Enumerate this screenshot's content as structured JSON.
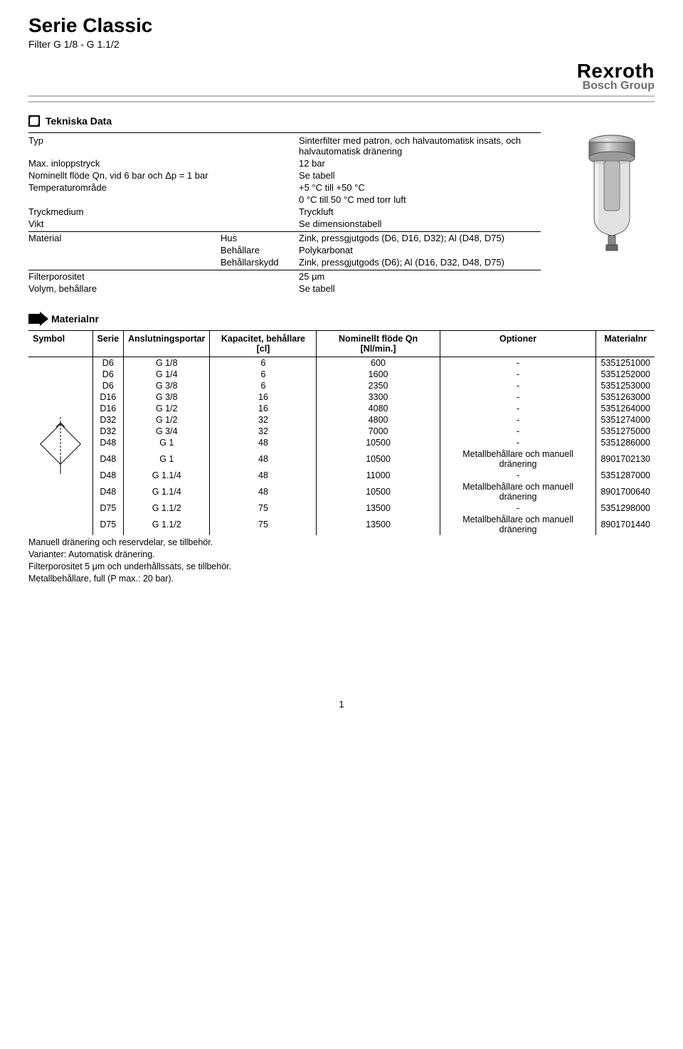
{
  "header": {
    "title": "Serie Classic",
    "subtitle": "Filter G 1/8 - G 1.1/2",
    "logo_main": "Rexroth",
    "logo_sub": "Bosch Group"
  },
  "tekniska": {
    "heading": "Tekniska Data",
    "rows1": [
      {
        "l": "Typ",
        "m": "",
        "r": "Sinterfilter med patron, och halvautomatisk insats, och halvautomatisk dränering"
      },
      {
        "l": "Max. inloppstryck",
        "m": "",
        "r": "12 bar"
      },
      {
        "l": "Nominellt flöde Qn, vid 6 bar och Δp = 1 bar",
        "m": "",
        "r": "Se tabell"
      },
      {
        "l": "Temperaturområde",
        "m": "",
        "r": "+5 °C till +50 °C"
      },
      {
        "l": "",
        "m": "",
        "r": "0 °C till 50 °C med torr luft"
      },
      {
        "l": "Tryckmedium",
        "m": "",
        "r": "Tryckluft"
      },
      {
        "l": "Vikt",
        "m": "",
        "r": "Se dimensionstabell"
      }
    ],
    "rows2": [
      {
        "l": "Material",
        "m": "Hus",
        "r": "Zink, pressgjutgods (D6, D16, D32); Al (D48, D75)"
      },
      {
        "l": "",
        "m": "Behållare",
        "r": "Polykarbonat"
      },
      {
        "l": "",
        "m": "Behållarskydd",
        "r": "Zink, pressgjutgods (D6); Al (D16, D32, D48, D75)"
      }
    ],
    "rows3": [
      {
        "l": "Filterporositet",
        "m": "",
        "r": "25 μm"
      },
      {
        "l": "Volym, behållare",
        "m": "",
        "r": "Se tabell"
      }
    ]
  },
  "materialnr": {
    "heading": "Materialnr",
    "columns": [
      "Symbol",
      "Serie",
      "Anslutningsportar",
      "Kapacitet, behållare [cl]",
      "Nominellt flöde Qn [Nl/min.]",
      "Optioner",
      "Materialnr"
    ],
    "rows": [
      {
        "serie": "D6",
        "port": "G 1/8",
        "kap": "6",
        "flow": "600",
        "opt": "-",
        "mat": "5351251000"
      },
      {
        "serie": "D6",
        "port": "G 1/4",
        "kap": "6",
        "flow": "1600",
        "opt": "-",
        "mat": "5351252000"
      },
      {
        "serie": "D6",
        "port": "G 3/8",
        "kap": "6",
        "flow": "2350",
        "opt": "-",
        "mat": "5351253000"
      },
      {
        "serie": "D16",
        "port": "G 3/8",
        "kap": "16",
        "flow": "3300",
        "opt": "-",
        "mat": "5351263000"
      },
      {
        "serie": "D16",
        "port": "G 1/2",
        "kap": "16",
        "flow": "4080",
        "opt": "-",
        "mat": "5351264000"
      },
      {
        "serie": "D32",
        "port": "G 1/2",
        "kap": "32",
        "flow": "4800",
        "opt": "-",
        "mat": "5351274000"
      },
      {
        "serie": "D32",
        "port": "G 3/4",
        "kap": "32",
        "flow": "7000",
        "opt": "-",
        "mat": "5351275000"
      },
      {
        "serie": "D48",
        "port": "G 1",
        "kap": "48",
        "flow": "10500",
        "opt": "-",
        "mat": "5351286000"
      },
      {
        "serie": "D48",
        "port": "G 1",
        "kap": "48",
        "flow": "10500",
        "opt": "Metallbehållare och manuell dränering",
        "mat": "8901702130"
      },
      {
        "serie": "D48",
        "port": "G 1.1/4",
        "kap": "48",
        "flow": "11000",
        "opt": "-",
        "mat": "5351287000"
      },
      {
        "serie": "D48",
        "port": "G 1.1/4",
        "kap": "48",
        "flow": "10500",
        "opt": "Metallbehållare och manuell dränering",
        "mat": "8901700640"
      },
      {
        "serie": "D75",
        "port": "G 1.1/2",
        "kap": "75",
        "flow": "13500",
        "opt": "-",
        "mat": "5351298000"
      },
      {
        "serie": "D75",
        "port": "G 1.1/2",
        "kap": "75",
        "flow": "13500",
        "opt": "Metallbehållare och manuell dränering",
        "mat": "8901701440"
      }
    ]
  },
  "notes": [
    "Manuell dränering och reservdelar, se tillbehör.",
    "Varianter: Automatisk dränering.",
    "Filterporositet 5 μm och underhållssats, se tillbehör.",
    "Metallbehållare, full (P max.: 20 bar)."
  ],
  "page_number": "1",
  "colors": {
    "rule_gray": "#bdbdbd",
    "text": "#000000",
    "logo_sub": "#6d6d6d"
  }
}
